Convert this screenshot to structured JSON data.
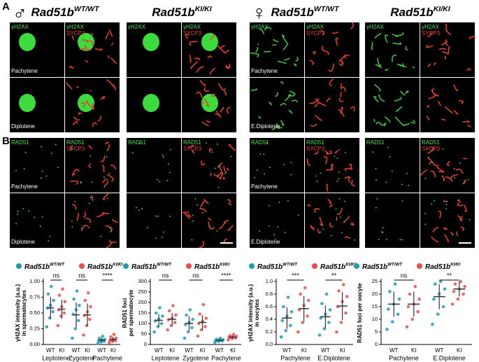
{
  "panel_labels": [
    "A",
    "B"
  ],
  "sex_symbols": [
    "♂",
    "♀"
  ],
  "genotype_headers": [
    {
      "gene": "Rad51b",
      "genotype": "WT/WT"
    },
    {
      "gene": "Rad51b",
      "genotype": "KI/KI"
    }
  ],
  "stain_labels": {
    "gh2ax": "γH2AX",
    "sycp3": "SYCP3",
    "rad51": "RAD51"
  },
  "stage_labels": {
    "male": [
      "Pachytene",
      "Diplotene"
    ],
    "female": [
      "Pachytene",
      "E.Diplotene"
    ]
  },
  "chart_data": [
    {
      "type": "strip",
      "ylabel": [
        "γH2AX intensity (a.u.)",
        "in spermatocytes"
      ],
      "categories": [
        "Leptotene",
        "Zygotene",
        "Pachytene"
      ],
      "subcategories": [
        "WT",
        "KI"
      ],
      "significance": [
        "ns",
        "ns",
        "****"
      ],
      "ylim": [
        0,
        1
      ],
      "yticks": [
        {
          "value": 0,
          "label": "0.00"
        },
        {
          "value": 0.25,
          "label": "0.25"
        },
        {
          "value": 0.5,
          "label": "0.50"
        },
        {
          "value": 0.75,
          "label": "0.75"
        },
        {
          "value": 1,
          "label": "1.00"
        }
      ],
      "series": [
        {
          "name": "Rad51b",
          "genotype": "WT/WT",
          "color": "#1d9bb8",
          "values": [
            [
              0.28,
              0.42,
              0.52,
              0.58,
              0.62,
              0.7,
              0.8,
              0.92
            ],
            [
              0.1,
              0.25,
              0.38,
              0.48,
              0.55,
              0.62,
              0.72,
              0.85
            ],
            [
              0.02,
              0.04,
              0.05,
              0.06,
              0.07,
              0.08,
              0.1,
              0.13
            ]
          ],
          "means": [
            0.58,
            0.47,
            0.07
          ],
          "sds": [
            0.17,
            0.2,
            0.03
          ]
        },
        {
          "name": "Rad51b",
          "genotype": "KI/KI",
          "color": "#e8504c",
          "values": [
            [
              0.3,
              0.45,
              0.5,
              0.55,
              0.6,
              0.68,
              0.78,
              0.88
            ],
            [
              0.15,
              0.3,
              0.4,
              0.46,
              0.52,
              0.6,
              0.7,
              0.82
            ],
            [
              0.03,
              0.05,
              0.06,
              0.07,
              0.08,
              0.1,
              0.12,
              0.16
            ]
          ],
          "means": [
            0.56,
            0.47,
            0.08
          ],
          "sds": [
            0.15,
            0.18,
            0.04
          ]
        }
      ]
    },
    {
      "type": "strip",
      "ylabel": [
        "RAD51 foci",
        "per spermatocyte"
      ],
      "categories": [
        "Leptotene",
        "Zygotene",
        "Pachytene"
      ],
      "subcategories": [
        "WT",
        "KI"
      ],
      "significance": [
        "ns",
        "ns",
        "****"
      ],
      "ylim": [
        0,
        300
      ],
      "yticks": [
        0,
        50,
        100,
        150,
        200,
        250,
        300
      ],
      "series": [
        {
          "name": "Rad51b",
          "genotype": "WT/WT",
          "color": "#1d9bb8",
          "values": [
            [
              60,
              85,
              100,
              112,
              120,
              135,
              150,
              175
            ],
            [
              30,
              60,
              80,
              95,
              105,
              120,
              140,
              165
            ],
            [
              10,
              14,
              17,
              19,
              21,
              23,
              25,
              30
            ]
          ],
          "means": [
            115,
            100,
            20
          ],
          "sds": [
            30,
            35,
            5
          ]
        },
        {
          "name": "Rad51b",
          "genotype": "KI/KI",
          "color": "#e8504c",
          "values": [
            [
              70,
              90,
              105,
              118,
              125,
              140,
              160,
              185
            ],
            [
              40,
              70,
              85,
              100,
              110,
              125,
              145,
              190
            ],
            [
              22,
              28,
              31,
              34,
              36,
              39,
              42,
              48
            ]
          ],
          "means": [
            120,
            105,
            35
          ],
          "sds": [
            30,
            35,
            7
          ]
        }
      ]
    },
    {
      "type": "strip",
      "ylabel": [
        "γH2AX intensity (a.u.)",
        "in oocytes"
      ],
      "categories": [
        "Pachytene",
        "E.Diplotene"
      ],
      "subcategories": [
        "WT",
        "KI"
      ],
      "significance": [
        "***",
        "**"
      ],
      "ylim": [
        0,
        1
      ],
      "yticks": [
        {
          "value": 0,
          "label": "0.0"
        },
        {
          "value": 0.2,
          "label": "0.2"
        },
        {
          "value": 0.4,
          "label": "0.4"
        },
        {
          "value": 0.6,
          "label": "0.6"
        },
        {
          "value": 0.8,
          "label": "0.8"
        },
        {
          "value": 1,
          "label": "1.0"
        }
      ],
      "series": [
        {
          "name": "Rad51b",
          "genotype": "WT/WT",
          "color": "#1d9bb8",
          "values": [
            [
              0.12,
              0.22,
              0.3,
              0.38,
              0.45,
              0.52,
              0.6,
              0.75
            ],
            [
              0.15,
              0.25,
              0.35,
              0.42,
              0.48,
              0.55,
              0.65,
              0.8
            ]
          ],
          "means": [
            0.42,
            0.44
          ],
          "sds": [
            0.17,
            0.18
          ]
        },
        {
          "name": "Rad51b",
          "genotype": "KI/KI",
          "color": "#e8504c",
          "values": [
            [
              0.2,
              0.35,
              0.45,
              0.55,
              0.62,
              0.7,
              0.8,
              0.9
            ],
            [
              0.2,
              0.35,
              0.5,
              0.6,
              0.68,
              0.76,
              0.85,
              0.95
            ]
          ],
          "means": [
            0.57,
            0.61
          ],
          "sds": [
            0.2,
            0.22
          ]
        }
      ]
    },
    {
      "type": "strip",
      "ylabel": [
        "RAD51 foci per oocyte"
      ],
      "categories": [
        "Pachytene",
        "E.Diplotene"
      ],
      "subcategories": [
        "WT",
        "KI"
      ],
      "significance": [
        "ns",
        "**"
      ],
      "ylim": [
        0,
        25
      ],
      "yticks": [
        0,
        5,
        10,
        15,
        20,
        25
      ],
      "series": [
        {
          "name": "Rad51b",
          "genotype": "WT/WT",
          "color": "#1d9bb8",
          "values": [
            [
              6,
              9,
              12,
              14,
              16,
              18,
              21,
              24
            ],
            [
              8,
              12,
              15,
              18,
              20,
              22,
              24,
              25
            ]
          ],
          "means": [
            16,
            19
          ],
          "sds": [
            5,
            5
          ]
        },
        {
          "name": "Rad51b",
          "genotype": "KI/KI",
          "color": "#e8504c",
          "values": [
            [
              7,
              10,
              13,
              15,
              16,
              18,
              20,
              23
            ],
            [
              16,
              18,
              20,
              21,
              22,
              23,
              24,
              25
            ]
          ],
          "means": [
            16,
            22
          ],
          "sds": [
            5,
            3
          ]
        }
      ]
    }
  ]
}
